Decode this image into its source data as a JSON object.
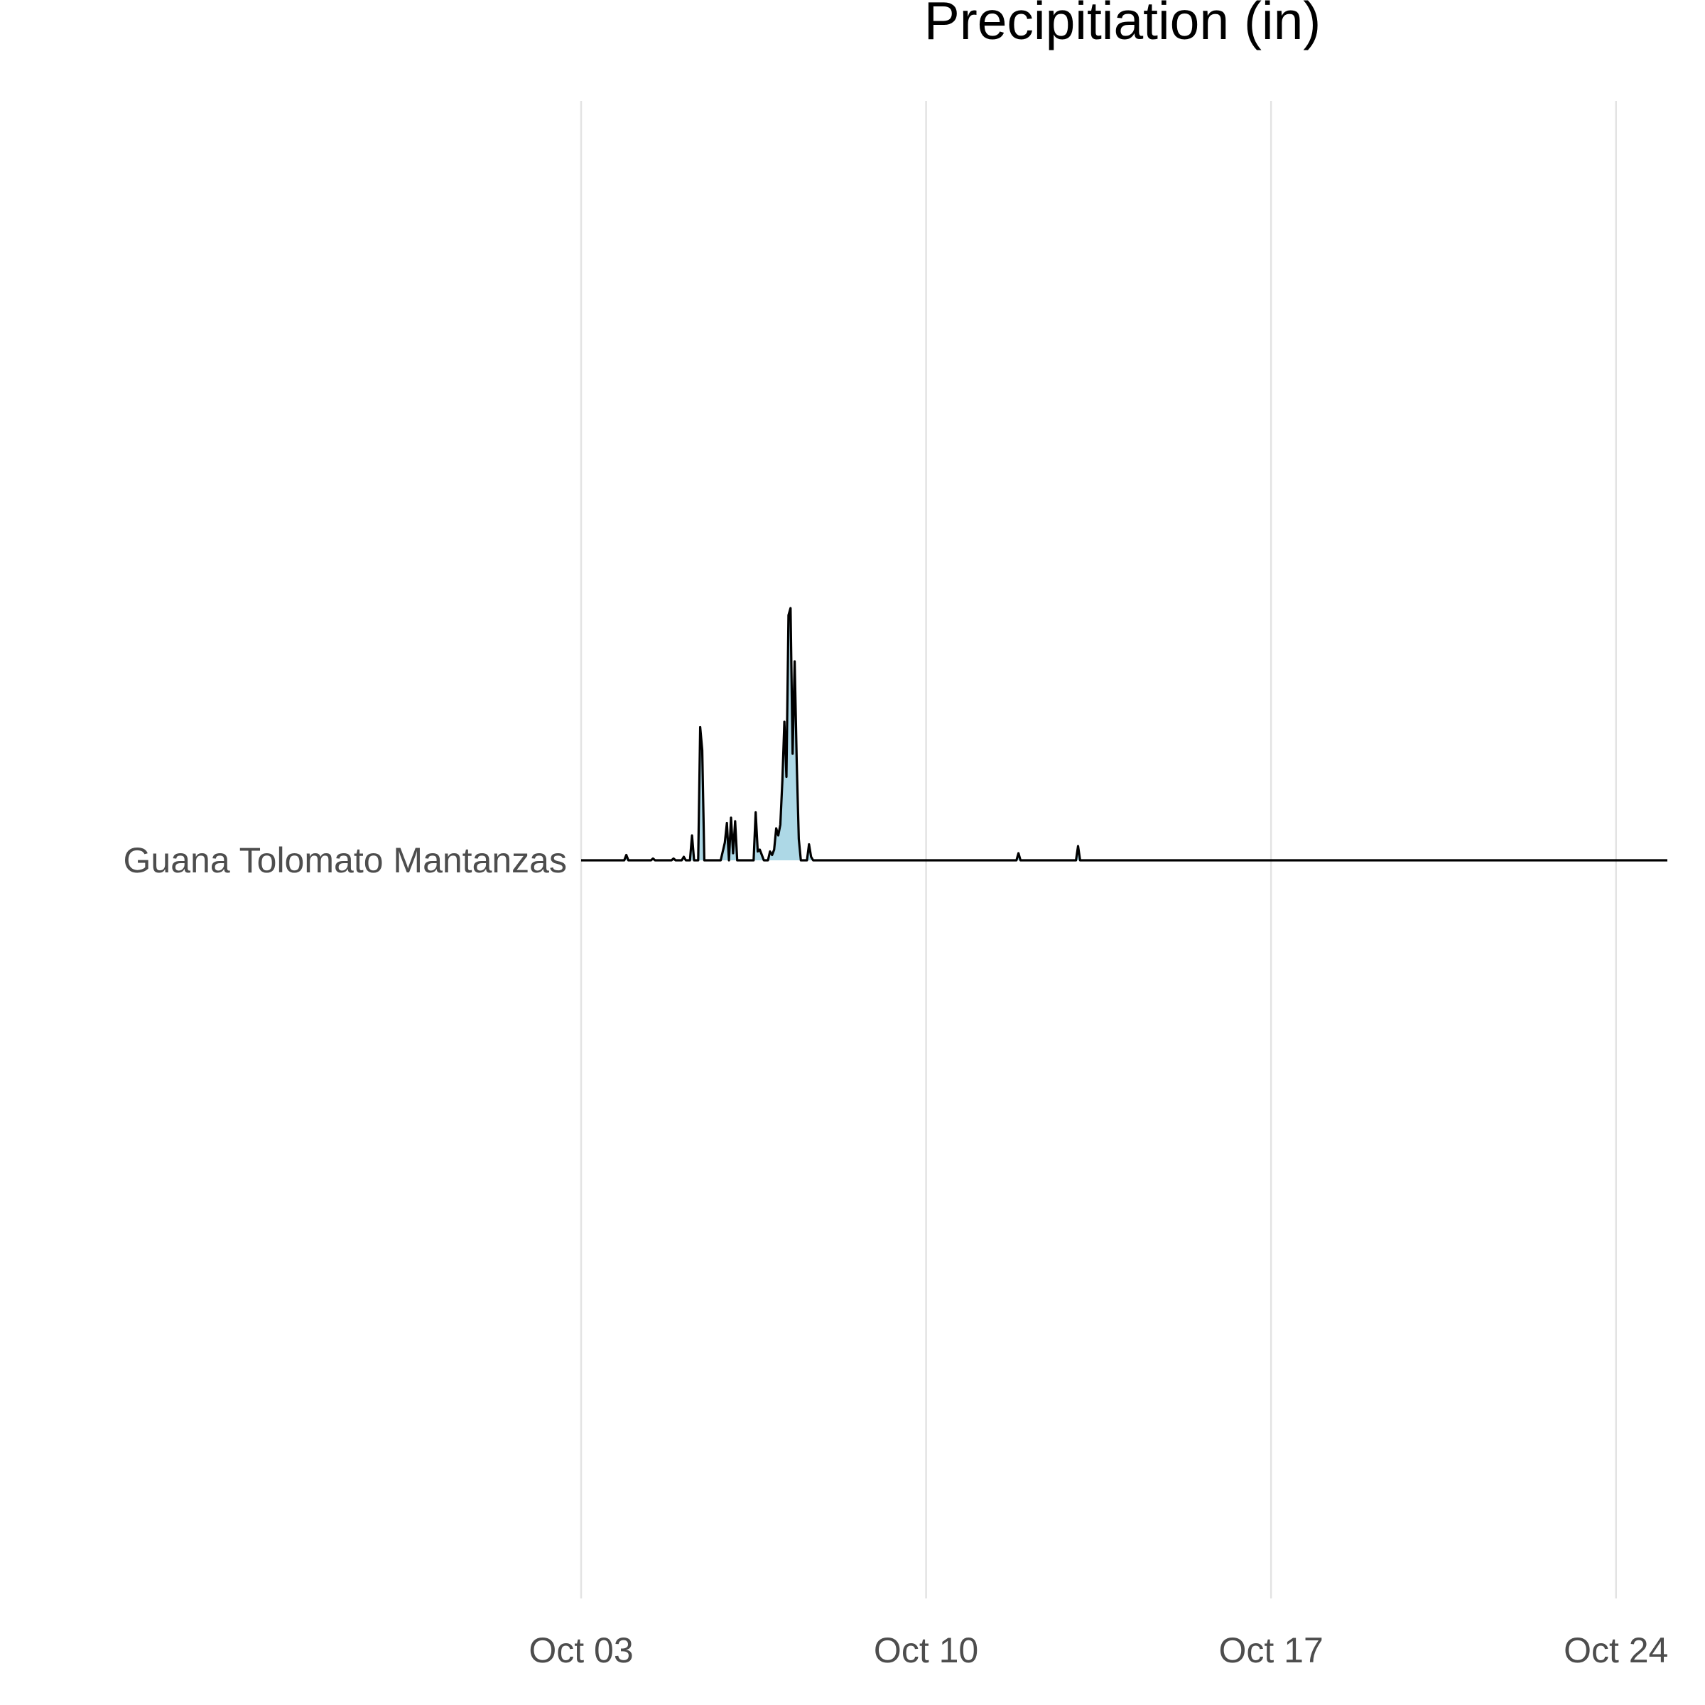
{
  "chart_data": {
    "type": "area",
    "title": "Precipitiation (in)",
    "xlabel": "",
    "ylabel": "",
    "x_ticks": [
      "Oct 03",
      "Oct 10",
      "Oct 17",
      "Oct 24"
    ],
    "x_range": [
      "2023-10-03T00:00",
      "2023-10-25T01:00"
    ],
    "grid": "vertical major only",
    "legend": "none",
    "fill_color": "#add8e6",
    "line_color": "#000000",
    "series": [
      {
        "name": "Guana Tolomato Mantanzas",
        "points": [
          [
            "2023-10-03T00:00",
            0
          ],
          [
            "2023-10-03T21:00",
            0
          ],
          [
            "2023-10-03T22:00",
            0.03
          ],
          [
            "2023-10-03T23:00",
            0
          ],
          [
            "2023-10-04T10:00",
            0
          ],
          [
            "2023-10-04T11:00",
            0.01
          ],
          [
            "2023-10-04T12:00",
            0
          ],
          [
            "2023-10-04T20:00",
            0
          ],
          [
            "2023-10-04T21:00",
            0.01
          ],
          [
            "2023-10-04T22:00",
            0
          ],
          [
            "2023-10-05T01:00",
            0
          ],
          [
            "2023-10-05T02:00",
            0.02
          ],
          [
            "2023-10-05T03:00",
            0
          ],
          [
            "2023-10-05T05:00",
            0
          ],
          [
            "2023-10-05T06:00",
            0.14
          ],
          [
            "2023-10-05T07:00",
            0
          ],
          [
            "2023-10-05T09:00",
            0
          ],
          [
            "2023-10-05T10:00",
            0.75
          ],
          [
            "2023-10-05T11:00",
            0.62
          ],
          [
            "2023-10-05T12:00",
            0
          ],
          [
            "2023-10-05T20:00",
            0
          ],
          [
            "2023-10-05T22:00",
            0.1
          ],
          [
            "2023-10-05T23:00",
            0.21
          ],
          [
            "2023-10-06T00:00",
            0
          ],
          [
            "2023-10-06T01:00",
            0.24
          ],
          [
            "2023-10-06T02:00",
            0.04
          ],
          [
            "2023-10-06T03:00",
            0.22
          ],
          [
            "2023-10-06T04:00",
            0
          ],
          [
            "2023-10-06T12:00",
            0
          ],
          [
            "2023-10-06T13:00",
            0.27
          ],
          [
            "2023-10-06T14:00",
            0.05
          ],
          [
            "2023-10-06T15:00",
            0.06
          ],
          [
            "2023-10-06T16:00",
            0.03
          ],
          [
            "2023-10-06T17:00",
            0
          ],
          [
            "2023-10-06T19:00",
            0
          ],
          [
            "2023-10-06T20:00",
            0.05
          ],
          [
            "2023-10-06T21:00",
            0.03
          ],
          [
            "2023-10-06T22:00",
            0.06
          ],
          [
            "2023-10-06T23:00",
            0.18
          ],
          [
            "2023-10-07T00:00",
            0.14
          ],
          [
            "2023-10-07T01:00",
            0.2
          ],
          [
            "2023-10-07T02:00",
            0.45
          ],
          [
            "2023-10-07T03:00",
            0.78
          ],
          [
            "2023-10-07T04:00",
            0.47
          ],
          [
            "2023-10-07T05:00",
            1.38
          ],
          [
            "2023-10-07T06:00",
            1.42
          ],
          [
            "2023-10-07T07:00",
            0.6
          ],
          [
            "2023-10-07T08:00",
            1.12
          ],
          [
            "2023-10-07T09:00",
            0.55
          ],
          [
            "2023-10-07T10:00",
            0.12
          ],
          [
            "2023-10-07T11:00",
            0
          ],
          [
            "2023-10-07T14:00",
            0
          ],
          [
            "2023-10-07T15:00",
            0.09
          ],
          [
            "2023-10-07T16:00",
            0.02
          ],
          [
            "2023-10-07T17:00",
            0
          ],
          [
            "2023-10-11T20:00",
            0
          ],
          [
            "2023-10-11T21:00",
            0.04
          ],
          [
            "2023-10-11T22:00",
            0
          ],
          [
            "2023-10-13T01:00",
            0
          ],
          [
            "2023-10-13T02:00",
            0.08
          ],
          [
            "2023-10-13T03:00",
            0
          ],
          [
            "2023-10-25T01:00",
            0
          ]
        ]
      }
    ]
  }
}
